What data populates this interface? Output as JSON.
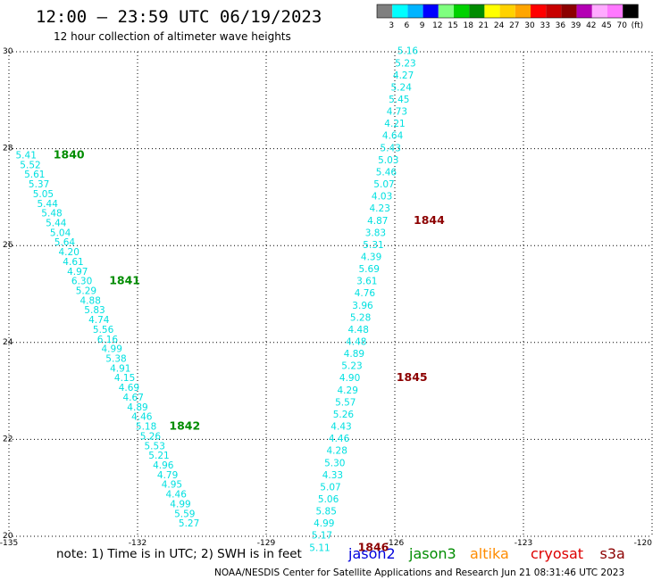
{
  "title": "12:00 – 23:59 UTC 06/19/2023",
  "subtitle": "12 hour collection of altimeter wave heights",
  "color_scale": {
    "labels": [
      "3",
      "6",
      "9",
      "12",
      "15",
      "18",
      "21",
      "24",
      "27",
      "30",
      "33",
      "36",
      "39",
      "42",
      "45",
      "70",
      "(ft)"
    ],
    "colors": [
      "#7f7f7f",
      "#00ffff",
      "#00b4ff",
      "#0000ff",
      "#7fff7f",
      "#00d200",
      "#008c00",
      "#ffff00",
      "#ffd200",
      "#ffa500",
      "#ff0000",
      "#c80000",
      "#8c0000",
      "#b400b4",
      "#ffaaff",
      "#ff78ff",
      "#000000"
    ]
  },
  "note": "note:  1) Time is in UTC; 2) SWH is in feet",
  "satellites": [
    {
      "name": "jason2",
      "color": "#0000dd"
    },
    {
      "name": "jason3",
      "color": "#008c00"
    },
    {
      "name": "altika",
      "color": "#ff8c00"
    },
    {
      "name": "cryosat",
      "color": "#dd0000"
    },
    {
      "name": "s3a",
      "color": "#8c0000"
    }
  ],
  "credit": "NOAA/NESDIS Center for Satellite Applications and Research    Jun 21 08:31:46 UTC 2023",
  "chart_data": {
    "type": "scatter",
    "xlim": [
      -135,
      -120
    ],
    "ylim": [
      20,
      30
    ],
    "x_ticks": [
      "-135",
      "-132",
      "-129",
      "-126",
      "-123",
      "-120"
    ],
    "y_ticks": [
      "20",
      "22",
      "24",
      "26",
      "28",
      "30"
    ],
    "grid": true,
    "value_color": "#00e0e0",
    "tracks": [
      {
        "points": [
          {
            "lon": -134.6,
            "lat": 27.8,
            "v": "5.41"
          },
          {
            "lon": -134.5,
            "lat": 27.6,
            "v": "5.52"
          },
          {
            "lon": -134.4,
            "lat": 27.4,
            "v": "5.61"
          },
          {
            "lon": -134.3,
            "lat": 27.2,
            "v": "5.37"
          },
          {
            "lon": -134.2,
            "lat": 27.0,
            "v": "5.05"
          },
          {
            "lon": -134.1,
            "lat": 26.8,
            "v": "5.44"
          },
          {
            "lon": -134.0,
            "lat": 26.6,
            "v": "5.48"
          },
          {
            "lon": -133.9,
            "lat": 26.4,
            "v": "5.44"
          },
          {
            "lon": -133.8,
            "lat": 26.2,
            "v": "5.04"
          },
          {
            "lon": -133.7,
            "lat": 26.0,
            "v": "5.64"
          },
          {
            "lon": -133.6,
            "lat": 25.8,
            "v": "4.20"
          },
          {
            "lon": -133.5,
            "lat": 25.6,
            "v": "4.61"
          },
          {
            "lon": -133.4,
            "lat": 25.4,
            "v": "4.97"
          },
          {
            "lon": -133.3,
            "lat": 25.2,
            "v": "6.30"
          },
          {
            "lon": -133.2,
            "lat": 25.0,
            "v": "5.29"
          },
          {
            "lon": -133.1,
            "lat": 24.8,
            "v": "4.88"
          },
          {
            "lon": -133.0,
            "lat": 24.6,
            "v": "5.83"
          },
          {
            "lon": -132.9,
            "lat": 24.4,
            "v": "4.74"
          },
          {
            "lon": -132.8,
            "lat": 24.2,
            "v": "5.56"
          },
          {
            "lon": -132.7,
            "lat": 24.0,
            "v": "6.16"
          },
          {
            "lon": -132.6,
            "lat": 23.8,
            "v": "4.99"
          },
          {
            "lon": -132.5,
            "lat": 23.6,
            "v": "5.38"
          },
          {
            "lon": -132.4,
            "lat": 23.4,
            "v": "4.91"
          },
          {
            "lon": -132.3,
            "lat": 23.2,
            "v": "4.15"
          },
          {
            "lon": -132.2,
            "lat": 23.0,
            "v": "4.69"
          },
          {
            "lon": -132.1,
            "lat": 22.8,
            "v": "4.67"
          },
          {
            "lon": -132.0,
            "lat": 22.6,
            "v": "4.89"
          },
          {
            "lon": -131.9,
            "lat": 22.4,
            "v": "4.46"
          },
          {
            "lon": -131.8,
            "lat": 22.2,
            "v": "5.18"
          },
          {
            "lon": -131.7,
            "lat": 22.0,
            "v": "5.26"
          },
          {
            "lon": -131.6,
            "lat": 21.8,
            "v": "5.53"
          },
          {
            "lon": -131.5,
            "lat": 21.6,
            "v": "5.21"
          },
          {
            "lon": -131.4,
            "lat": 21.4,
            "v": "4.96"
          },
          {
            "lon": -131.3,
            "lat": 21.2,
            "v": "4.79"
          },
          {
            "lon": -131.2,
            "lat": 21.0,
            "v": "4.95"
          },
          {
            "lon": -131.1,
            "lat": 20.8,
            "v": "4.46"
          },
          {
            "lon": -131.0,
            "lat": 20.6,
            "v": "4.99"
          },
          {
            "lon": -130.9,
            "lat": 20.4,
            "v": "5.59"
          },
          {
            "lon": -130.8,
            "lat": 20.2,
            "v": "5.27"
          }
        ],
        "times": [
          {
            "lon": -133.6,
            "lat": 27.8,
            "label": "1840",
            "color": "#008c00"
          },
          {
            "lon": -132.3,
            "lat": 25.2,
            "label": "1841",
            "color": "#008c00"
          },
          {
            "lon": -130.9,
            "lat": 22.2,
            "label": "1842",
            "color": "#008c00"
          }
        ]
      },
      {
        "points": [
          {
            "lon": -125.7,
            "lat": 29.95,
            "v": "5.16"
          },
          {
            "lon": -125.75,
            "lat": 29.7,
            "v": "5.23"
          },
          {
            "lon": -125.8,
            "lat": 29.45,
            "v": "4.27"
          },
          {
            "lon": -125.85,
            "lat": 29.2,
            "v": "5.24"
          },
          {
            "lon": -125.9,
            "lat": 28.95,
            "v": "5.45"
          },
          {
            "lon": -125.95,
            "lat": 28.7,
            "v": "4.73"
          },
          {
            "lon": -126.0,
            "lat": 28.45,
            "v": "4.21"
          },
          {
            "lon": -126.05,
            "lat": 28.2,
            "v": "4.64"
          },
          {
            "lon": -126.1,
            "lat": 27.95,
            "v": "5.43"
          },
          {
            "lon": -126.15,
            "lat": 27.7,
            "v": "5.03"
          },
          {
            "lon": -126.2,
            "lat": 27.45,
            "v": "5.46"
          },
          {
            "lon": -126.25,
            "lat": 27.2,
            "v": "5.07"
          },
          {
            "lon": -126.3,
            "lat": 26.95,
            "v": "4.03"
          },
          {
            "lon": -126.35,
            "lat": 26.7,
            "v": "4.23"
          },
          {
            "lon": -126.4,
            "lat": 26.45,
            "v": "4.87"
          },
          {
            "lon": -126.45,
            "lat": 26.2,
            "v": "3.83"
          },
          {
            "lon": -126.5,
            "lat": 25.95,
            "v": "5.31"
          },
          {
            "lon": -126.55,
            "lat": 25.7,
            "v": "4.39"
          },
          {
            "lon": -126.6,
            "lat": 25.45,
            "v": "5.69"
          },
          {
            "lon": -126.65,
            "lat": 25.2,
            "v": "3.61"
          },
          {
            "lon": -126.7,
            "lat": 24.95,
            "v": "4.76"
          },
          {
            "lon": -126.75,
            "lat": 24.7,
            "v": "3.96"
          },
          {
            "lon": -126.8,
            "lat": 24.45,
            "v": "5.28"
          },
          {
            "lon": -126.85,
            "lat": 24.2,
            "v": "4.48"
          },
          {
            "lon": -126.9,
            "lat": 23.95,
            "v": "4.48"
          },
          {
            "lon": -126.95,
            "lat": 23.7,
            "v": "4.89"
          },
          {
            "lon": -127.0,
            "lat": 23.45,
            "v": "5.23"
          },
          {
            "lon": -127.05,
            "lat": 23.2,
            "v": "4.90"
          },
          {
            "lon": -127.1,
            "lat": 22.95,
            "v": "4.29"
          },
          {
            "lon": -127.15,
            "lat": 22.7,
            "v": "5.57"
          },
          {
            "lon": -127.2,
            "lat": 22.45,
            "v": "5.26"
          },
          {
            "lon": -127.25,
            "lat": 22.2,
            "v": "4.43"
          },
          {
            "lon": -127.3,
            "lat": 21.95,
            "v": "4.46"
          },
          {
            "lon": -127.35,
            "lat": 21.7,
            "v": "4.28"
          },
          {
            "lon": -127.4,
            "lat": 21.45,
            "v": "5.30"
          },
          {
            "lon": -127.45,
            "lat": 21.2,
            "v": "4.33"
          },
          {
            "lon": -127.5,
            "lat": 20.95,
            "v": "5.07"
          },
          {
            "lon": -127.55,
            "lat": 20.7,
            "v": "5.06"
          },
          {
            "lon": -127.6,
            "lat": 20.45,
            "v": "5.85"
          },
          {
            "lon": -127.65,
            "lat": 20.2,
            "v": "4.99"
          },
          {
            "lon": -127.7,
            "lat": 19.95,
            "v": "5.17"
          },
          {
            "lon": -127.75,
            "lat": 19.7,
            "v": "5.11"
          }
        ],
        "times": [
          {
            "lon": -125.2,
            "lat": 26.45,
            "label": "1844",
            "color": "#8c0000"
          },
          {
            "lon": -125.6,
            "lat": 23.2,
            "label": "1845",
            "color": "#8c0000"
          },
          {
            "lon": -126.5,
            "lat": 19.7,
            "label": "1846",
            "color": "#8c0000"
          }
        ]
      }
    ]
  }
}
